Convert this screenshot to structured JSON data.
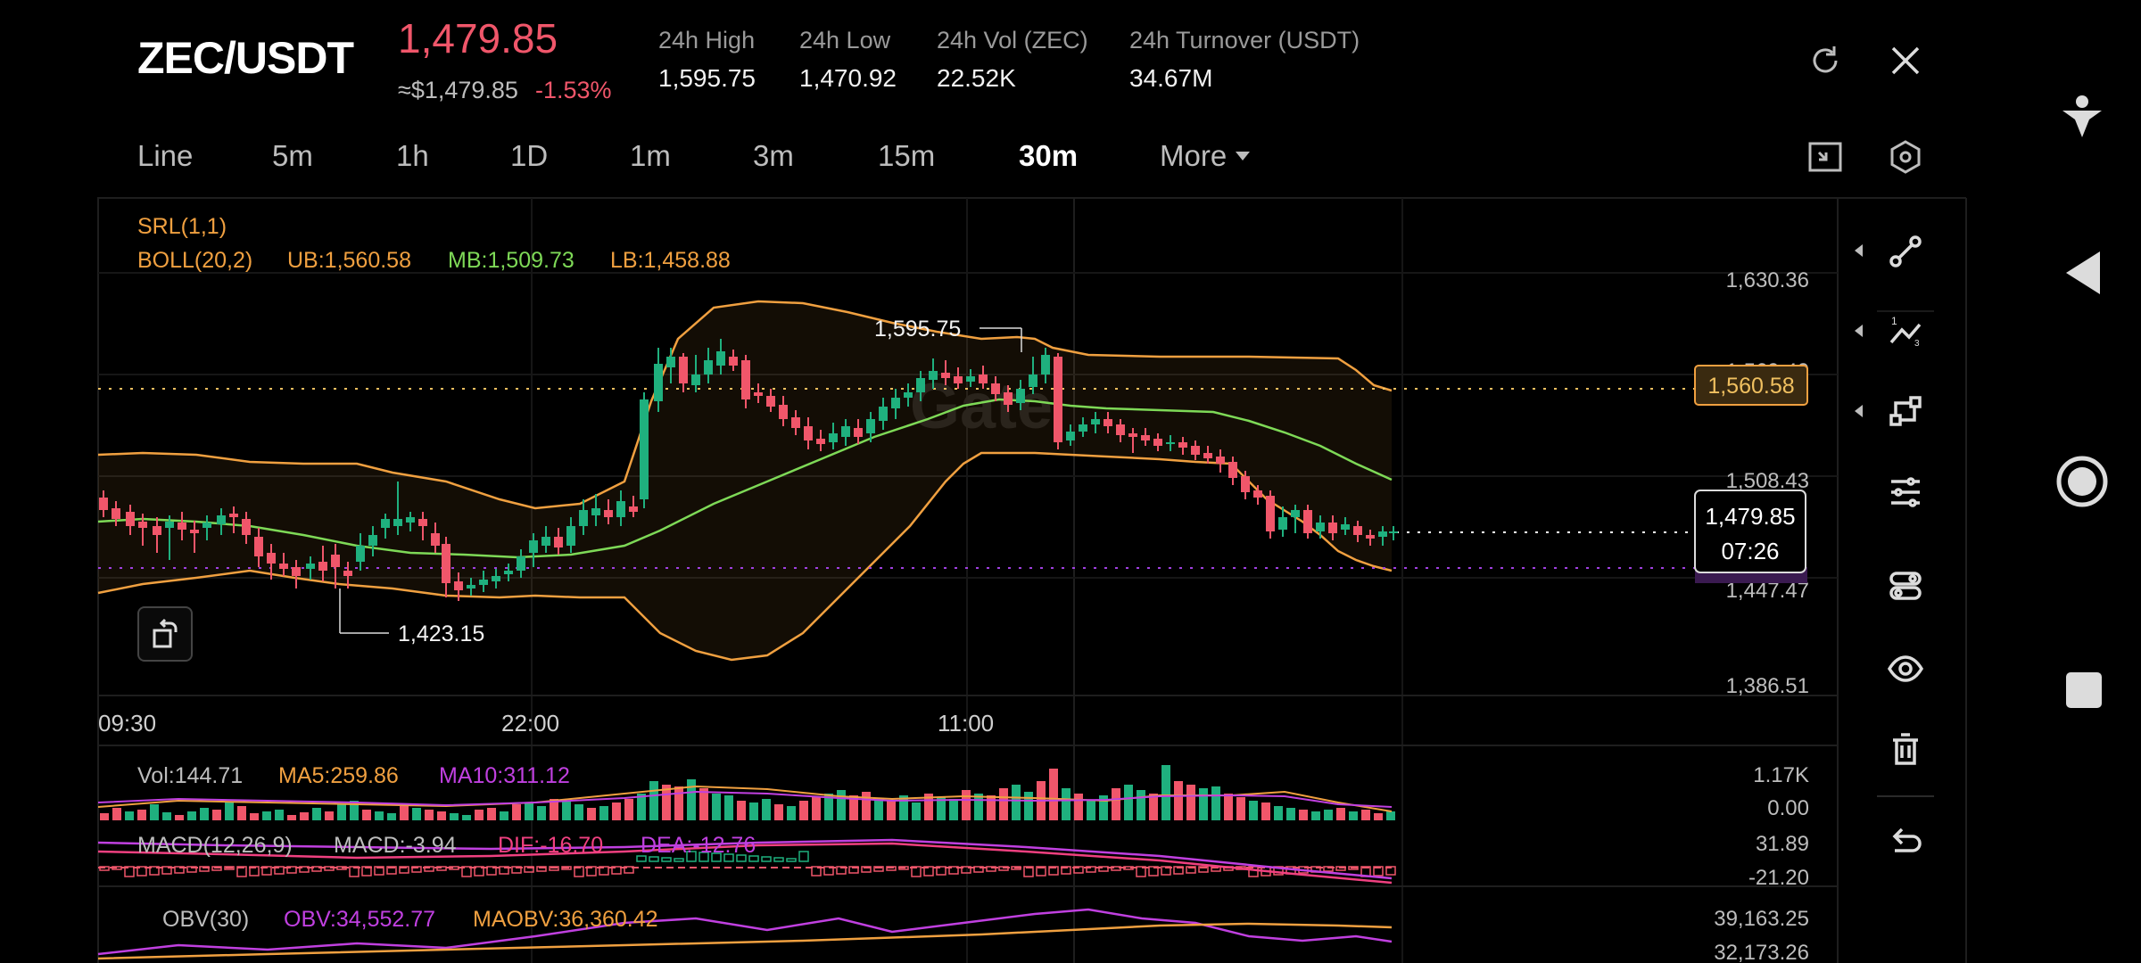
{
  "header": {
    "pair": "ZEC/USDT",
    "price": "1,479.85",
    "usd_price": "≈$1,479.85",
    "change_pct": "-1.53%",
    "stats": [
      {
        "label": "24h High",
        "value": "1,595.75"
      },
      {
        "label": "24h Low",
        "value": "1,470.92"
      },
      {
        "label": "24h Vol (ZEC)",
        "value": "22.52K"
      },
      {
        "label": "24h Turnover (USDT)",
        "value": "34.67M"
      }
    ]
  },
  "timeframes": [
    "Line",
    "5m",
    "1h",
    "1D",
    "1m",
    "3m",
    "15m",
    "30m"
  ],
  "active_timeframe": "30m",
  "more_label": "More",
  "indicators": {
    "srl": "SRL(1,1)",
    "boll": "BOLL(20,2)",
    "ub": "UB:1,560.58",
    "mb": "MB:1,509.73",
    "lb": "LB:1,458.88"
  },
  "price_axis": [
    "1,630.36",
    "1,569.40",
    "1,508.43",
    "1,447.47",
    "1,386.51"
  ],
  "price_tags": {
    "ub": "1,560.58",
    "last": "1,479.85",
    "countdown": "07:26"
  },
  "annotations": {
    "high": "1,595.75",
    "low": "1,423.15"
  },
  "time_axis": [
    "09:30",
    "22:00",
    "11:00"
  ],
  "volume": {
    "vol": "Vol:144.71",
    "ma5": "MA5:259.86",
    "ma10": "MA10:311.12",
    "axis_top": "1.17K",
    "axis_bottom": "0.00"
  },
  "macd": {
    "label": "MACD(12,26,9)",
    "macd": "MACD:-3.94",
    "dif": "DIF:-16.70",
    "dea": "DEA:-12.76",
    "axis_top": "31.89",
    "axis_bottom": "-21.20"
  },
  "obv": {
    "label": "OBV(30)",
    "obv": "OBV:34,552.77",
    "maobv": "MAOBV:36,360.42",
    "axis_top": "39,163.25",
    "axis_bottom": "32,173.26"
  },
  "colors": {
    "up": "#1fb07e",
    "down": "#f0566a",
    "boll_band": "#f0a040",
    "mb": "#7ed957",
    "macd_purple": "#c040e0",
    "dif_pink": "#f04080"
  },
  "chart_data": {
    "type": "candlestick",
    "series": [
      {
        "name": "BOLL UB",
        "last": 1560.58
      },
      {
        "name": "BOLL MB",
        "last": 1509.73
      },
      {
        "name": "BOLL LB",
        "last": 1458.88
      }
    ],
    "last_price": 1479.85,
    "high": 1595.75,
    "low": 1423.15,
    "ylim": [
      1386.51,
      1630.36
    ]
  }
}
